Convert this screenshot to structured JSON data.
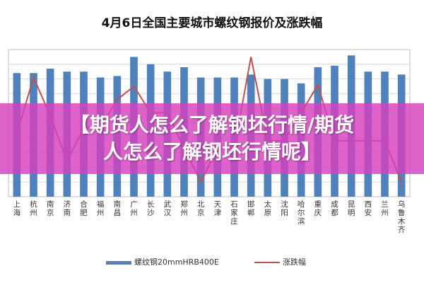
{
  "colors": {
    "bar": "#4f81bd",
    "line": "#c0504d",
    "banner": "#d641be",
    "grid": "#d9d9d9"
  },
  "banner": {
    "line1": "【期货人怎么了解钢坯行情/期货",
    "line2": "人怎么了解钢坯行情呢】"
  },
  "chart_data": {
    "type": "bar",
    "title": "4月6日全国主要城市螺纹钢报价及涨跌幅",
    "categories": [
      "上海",
      "杭州",
      "南京",
      "济南",
      "合肥",
      "福州",
      "南昌",
      "广州",
      "长沙",
      "武汉",
      "郑州",
      "北京",
      "天津",
      "石家庄",
      "邯郸",
      "太原",
      "沈阳",
      "哈尔滨",
      "重庆",
      "成都",
      "昆明",
      "西安",
      "兰州",
      "乌鲁木齐"
    ],
    "series": [
      {
        "name": "螺纹钢20mmHRB400E",
        "type": "bar",
        "values": [
          0.84,
          0.84,
          0.87,
          0.85,
          0.85,
          0.81,
          0.82,
          0.95,
          0.9,
          0.85,
          0.88,
          0.81,
          0.81,
          0.81,
          0.83,
          0.8,
          0.8,
          0.77,
          0.88,
          0.89,
          0.96,
          0.85,
          0.85,
          0.83
        ]
      },
      {
        "name": "涨跌幅",
        "type": "line",
        "values": [
          0.43,
          0.81,
          0.55,
          0.24,
          0.47,
          0.47,
          0.66,
          0.75,
          0.57,
          0.57,
          0.33,
          0.1,
          0.33,
          0.33,
          0.95,
          0.38,
          0.38,
          0.57,
          0.76,
          0.38,
          0.38,
          0.38,
          0.38,
          0.1
        ]
      }
    ],
    "ylim": [
      0,
      1
    ],
    "grid": true,
    "legend": "bottom"
  }
}
